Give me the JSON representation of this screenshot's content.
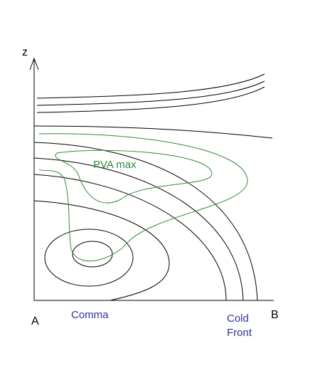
{
  "axis": {
    "z": "z",
    "a": "A",
    "b": "B"
  },
  "labels": {
    "pva_max": "PVA max",
    "comma": "Comma",
    "cold_front": [
      "Cold",
      "Front"
    ]
  }
}
